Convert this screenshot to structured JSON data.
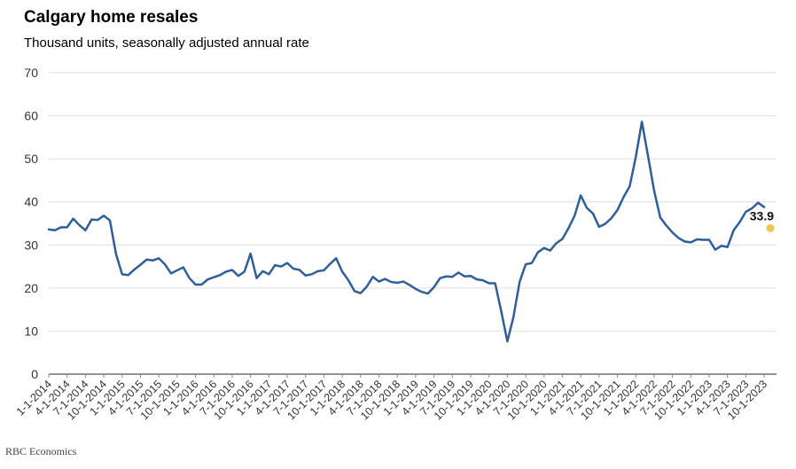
{
  "header": {
    "title": "Calgary home resales",
    "subtitle": "Thousand units, seasonally adjusted annual rate"
  },
  "footer": {
    "source": "RBC Economics"
  },
  "colors": {
    "line": "#2e5f9b",
    "marker": "#f3c54e",
    "grid": "#dddddd"
  },
  "chart_data": {
    "type": "line",
    "title": "Calgary home resales",
    "subtitle": "Thousand units, seasonally adjusted annual rate",
    "xlabel": "",
    "ylabel": "",
    "ylim": [
      0,
      70
    ],
    "yticks": [
      0,
      10,
      20,
      30,
      40,
      50,
      60,
      70
    ],
    "grid": true,
    "legend": "none",
    "x_tick_labels": [
      "1-1-2014",
      "4-1-2014",
      "7-1-2014",
      "10-1-2014",
      "1-1-2015",
      "4-1-2015",
      "7-1-2015",
      "10-1-2015",
      "1-1-2016",
      "4-1-2016",
      "7-1-2016",
      "10-1-2016",
      "1-1-2017",
      "4-1-2017",
      "7-1-2017",
      "10-1-2017",
      "1-1-2018",
      "4-1-2018",
      "7-1-2018",
      "10-1-2018",
      "1-1-2019",
      "4-1-2019",
      "7-1-2019",
      "10-1-2019",
      "1-1-2020",
      "4-1-2020",
      "7-1-2020",
      "10-1-2020",
      "1-1-2021",
      "4-1-2021",
      "7-1-2021",
      "10-1-2021",
      "1-1-2022",
      "4-1-2022",
      "7-1-2022",
      "10-1-2022",
      "1-1-2023",
      "4-1-2023",
      "7-1-2023",
      "10-1-2023"
    ],
    "series": [
      {
        "values": [
          33.6,
          33.4,
          34.1,
          34.1,
          36.1,
          34.6,
          33.4,
          35.9,
          35.8,
          36.8,
          35.7,
          27.9,
          23.2,
          23.0,
          24.3,
          25.4,
          26.6,
          26.4,
          26.9,
          25.5,
          23.4,
          24.1,
          24.8,
          22.3,
          20.8,
          20.8,
          22.0,
          22.5,
          23.0,
          23.8,
          24.2,
          22.8,
          23.8,
          28.0,
          22.3,
          23.9,
          23.2,
          25.3,
          25.0,
          25.8,
          24.5,
          24.2,
          22.9,
          23.2,
          23.9,
          24.1,
          25.6,
          26.9,
          23.8,
          21.8,
          19.3,
          18.8,
          20.3,
          22.6,
          21.5,
          22.1,
          21.4,
          21.2,
          21.5,
          20.7,
          19.8,
          19.1,
          18.7,
          20.2,
          22.3,
          22.7,
          22.6,
          23.6,
          22.7,
          22.8,
          22.0,
          21.8,
          21.1,
          21.1,
          14.6,
          7.6,
          13.3,
          21.4,
          25.5,
          25.8,
          28.3,
          29.3,
          28.7,
          30.4,
          31.4,
          33.9,
          36.8,
          41.5,
          38.6,
          37.3,
          34.2,
          34.9,
          36.2,
          38.1,
          41.1,
          43.6,
          50.4,
          58.6,
          50.7,
          42.6,
          36.4,
          34.5,
          32.9,
          31.6,
          30.8,
          30.6,
          31.3,
          31.2,
          31.2,
          28.9,
          29.8,
          29.5,
          33.4,
          35.3,
          37.7,
          38.5,
          39.8,
          38.8,
          33.9
        ]
      }
    ],
    "last_value_label": "33.9"
  }
}
